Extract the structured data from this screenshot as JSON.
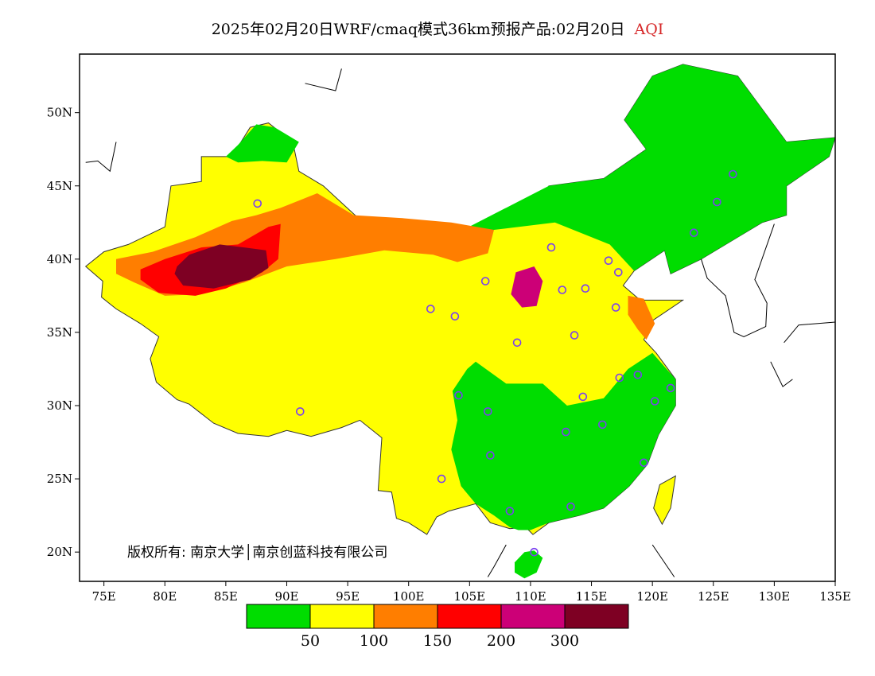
{
  "title": {
    "main": "2025年02月20日WRF/cmaq模式36km预报产品:02月20日",
    "variable": "AQI",
    "variable_color": "#d62728"
  },
  "axes": {
    "lon": {
      "min": 73,
      "max": 135,
      "ticks": [
        75,
        80,
        85,
        90,
        95,
        100,
        105,
        110,
        115,
        120,
        125,
        130,
        135
      ],
      "tick_labels": [
        "75E",
        "80E",
        "85E",
        "90E",
        "95E",
        "100E",
        "105E",
        "110E",
        "115E",
        "120E",
        "125E",
        "130E",
        "135E"
      ]
    },
    "lat": {
      "min": 18,
      "max": 54,
      "ticks": [
        20,
        25,
        30,
        35,
        40,
        45,
        50
      ],
      "tick_labels": [
        "20N",
        "25N",
        "30N",
        "35N",
        "40N",
        "45N",
        "50N"
      ]
    }
  },
  "colorbar": {
    "colors": [
      "#00dd00",
      "#ffff00",
      "#ff7e00",
      "#ff0000",
      "#cc0077",
      "#7e0023"
    ],
    "levels": [
      "50",
      "100",
      "150",
      "200",
      "300"
    ]
  },
  "copyright": "版权所有: 南京大学│南京创蓝科技有限公司",
  "stations": [
    [
      87.6,
      43.8
    ],
    [
      91.1,
      29.6
    ],
    [
      101.8,
      36.6
    ],
    [
      103.8,
      36.1
    ],
    [
      106.3,
      38.5
    ],
    [
      111.7,
      40.8
    ],
    [
      112.6,
      37.9
    ],
    [
      114.5,
      38.0
    ],
    [
      116.4,
      39.9
    ],
    [
      117.2,
      39.1
    ],
    [
      117.0,
      36.7
    ],
    [
      113.6,
      34.8
    ],
    [
      108.9,
      34.3
    ],
    [
      114.3,
      30.6
    ],
    [
      112.9,
      28.2
    ],
    [
      106.5,
      29.6
    ],
    [
      104.1,
      30.7
    ],
    [
      106.7,
      26.6
    ],
    [
      102.7,
      25.0
    ],
    [
      108.3,
      22.8
    ],
    [
      113.3,
      23.1
    ],
    [
      110.3,
      20.0
    ],
    [
      119.3,
      26.1
    ],
    [
      120.2,
      30.3
    ],
    [
      118.8,
      32.1
    ],
    [
      117.3,
      31.9
    ],
    [
      115.9,
      28.7
    ],
    [
      121.5,
      31.2
    ],
    [
      123.4,
      41.8
    ],
    [
      125.3,
      43.9
    ],
    [
      126.6,
      45.8
    ]
  ],
  "chart_data": {
    "type": "heatmap",
    "title": "2025年02月20日WRF/cmaq模式36km预报产品:02月20日 AQI",
    "xlabel": "",
    "ylabel": "",
    "xlim": [
      73,
      135
    ],
    "ylim": [
      18,
      54
    ],
    "legend_bins": [
      {
        "range": "0-50",
        "color": "#00dd00"
      },
      {
        "range": "50-100",
        "color": "#ffff00"
      },
      {
        "range": "100-150",
        "color": "#ff7e00"
      },
      {
        "range": "150-200",
        "color": "#ff0000"
      },
      {
        "range": "200-300",
        "color": "#cc0077"
      },
      {
        "range": ">300",
        "color": "#7e0023"
      }
    ],
    "regions": [
      {
        "name": "",
        "category": "0-50",
        "polygon": [
          [
            122.5,
            53.3
          ],
          [
            127,
            52.5
          ],
          [
            131,
            48
          ],
          [
            135,
            48.3
          ],
          [
            134.5,
            47
          ],
          [
            131,
            45
          ],
          [
            131,
            43
          ],
          [
            129,
            42.5
          ],
          [
            127,
            41.5
          ],
          [
            124,
            40
          ],
          [
            121.5,
            39
          ],
          [
            121,
            40.6
          ],
          [
            118.5,
            39.2
          ],
          [
            116.5,
            41
          ],
          [
            112,
            42.5
          ],
          [
            107,
            42
          ],
          [
            104,
            41.8
          ],
          [
            111.5,
            45
          ],
          [
            116,
            45.5
          ],
          [
            119.5,
            47.5
          ],
          [
            117.7,
            49.5
          ],
          [
            120,
            52.5
          ]
        ]
      },
      {
        "name": "",
        "category": "0-50",
        "polygon": [
          [
            105.5,
            33
          ],
          [
            108,
            31.5
          ],
          [
            111,
            31.5
          ],
          [
            113,
            30
          ],
          [
            116,
            30.5
          ],
          [
            118,
            32.5
          ],
          [
            120,
            33.6
          ],
          [
            121.9,
            31.8
          ],
          [
            121.9,
            30
          ],
          [
            120.5,
            28
          ],
          [
            119.6,
            26
          ],
          [
            118.1,
            24.5
          ],
          [
            116,
            23
          ],
          [
            114,
            22.5
          ],
          [
            111.5,
            22
          ],
          [
            110,
            21.5
          ],
          [
            109,
            21.5
          ],
          [
            108.3,
            21.7
          ],
          [
            107,
            22.5
          ],
          [
            105.5,
            23.3
          ],
          [
            104.3,
            24.5
          ],
          [
            103.5,
            27
          ],
          [
            104,
            29
          ],
          [
            103.6,
            31
          ],
          [
            104.8,
            32.5
          ]
        ]
      },
      {
        "name": "",
        "category": "0-50",
        "polygon": [
          [
            91,
            48
          ],
          [
            89,
            49
          ],
          [
            87.5,
            49.2
          ],
          [
            86,
            47.8
          ],
          [
            85,
            47
          ],
          [
            86,
            46.6
          ],
          [
            88,
            46.7
          ],
          [
            90,
            46.6
          ]
        ]
      },
      {
        "name": "",
        "category": "0-50",
        "polygon": [
          [
            110.3,
            20.1
          ],
          [
            111,
            19.6
          ],
          [
            110.5,
            18.6
          ],
          [
            109.5,
            18.2
          ],
          [
            108.7,
            18.6
          ],
          [
            108.7,
            19.3
          ],
          [
            109.5,
            20
          ]
        ]
      },
      {
        "name": "",
        "category": "100-150",
        "polygon": [
          [
            76,
            40
          ],
          [
            79,
            40.5
          ],
          [
            82.5,
            41.5
          ],
          [
            85.5,
            42.6
          ],
          [
            87.5,
            43
          ],
          [
            89.5,
            43.5
          ],
          [
            92.5,
            44.5
          ],
          [
            95.5,
            43
          ],
          [
            99.5,
            42.8
          ],
          [
            103.5,
            42.5
          ],
          [
            107,
            42
          ],
          [
            106.5,
            40.4
          ],
          [
            104,
            39.8
          ],
          [
            102,
            40.3
          ],
          [
            98,
            40.6
          ],
          [
            94,
            40
          ],
          [
            90,
            39.5
          ],
          [
            86.5,
            38.4
          ],
          [
            83,
            37.6
          ],
          [
            80,
            37.5
          ],
          [
            77.5,
            38.4
          ],
          [
            76,
            39
          ]
        ]
      },
      {
        "name": "",
        "category": "150-200",
        "polygon": [
          [
            78,
            39.3
          ],
          [
            80,
            40
          ],
          [
            83,
            40.8
          ],
          [
            86,
            41
          ],
          [
            88.5,
            42.2
          ],
          [
            89.5,
            42.4
          ],
          [
            89.3,
            40
          ],
          [
            88,
            39.1
          ],
          [
            85,
            38
          ],
          [
            82.5,
            37.5
          ],
          [
            79.5,
            37.7
          ],
          [
            78,
            38.6
          ]
        ]
      },
      {
        "name": "",
        "category": ">300",
        "polygon": [
          [
            81,
            39.5
          ],
          [
            82,
            40.3
          ],
          [
            84.5,
            41
          ],
          [
            86.5,
            40.8
          ],
          [
            88.3,
            40.6
          ],
          [
            88.5,
            39.4
          ],
          [
            87,
            38.6
          ],
          [
            84,
            38
          ],
          [
            81.5,
            38.2
          ],
          [
            80.8,
            39
          ]
        ]
      },
      {
        "name": "",
        "category": "200-300",
        "polygon": [
          [
            108.8,
            39.1
          ],
          [
            110.3,
            39.5
          ],
          [
            111,
            38.5
          ],
          [
            110.5,
            36.8
          ],
          [
            109.3,
            36.7
          ],
          [
            108.4,
            37.6
          ]
        ]
      },
      {
        "name": "",
        "category": "100-150",
        "polygon": [
          [
            118,
            37.5
          ],
          [
            119.3,
            37.3
          ],
          [
            120.2,
            35.6
          ],
          [
            119.5,
            34.5
          ],
          [
            118.8,
            35.2
          ],
          [
            118,
            36.2
          ]
        ]
      }
    ]
  }
}
